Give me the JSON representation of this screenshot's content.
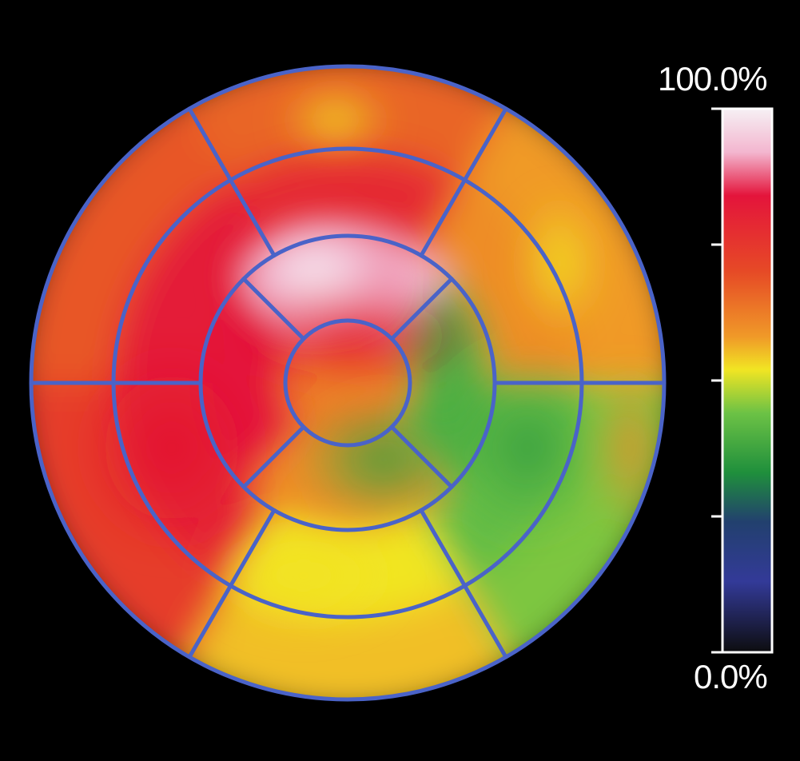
{
  "colors": {
    "background": "#000000",
    "segment_border": "#4a63c8",
    "label_text": "#ffffff",
    "scale_frame": "#ffffff"
  },
  "color_scale": {
    "max_label": "100.0%",
    "min_label": "0.0%",
    "stops": [
      {
        "at": 1.0,
        "color": "#f6f0f4"
      },
      {
        "at": 0.92,
        "color": "#f3b6cf"
      },
      {
        "at": 0.84,
        "color": "#e4143b"
      },
      {
        "at": 0.7,
        "color": "#e64a26"
      },
      {
        "at": 0.58,
        "color": "#f09a28"
      },
      {
        "at": 0.52,
        "color": "#f1e523"
      },
      {
        "at": 0.44,
        "color": "#6cc245"
      },
      {
        "at": 0.33,
        "color": "#1f8f3c"
      },
      {
        "at": 0.24,
        "color": "#22406e"
      },
      {
        "at": 0.13,
        "color": "#333a98"
      },
      {
        "at": 0.0,
        "color": "#0d0d0f"
      }
    ],
    "tick_values": [
      0,
      0.25,
      0.5,
      0.75,
      1
    ]
  },
  "bullseye": {
    "rings": [
      {
        "name": "basal",
        "segments": 6
      },
      {
        "name": "mid",
        "segments": 6
      },
      {
        "name": "apical",
        "segments": 4
      },
      {
        "name": "apex",
        "segments": 1
      }
    ],
    "basal": [
      {
        "segment": 1,
        "level": 0.66
      },
      {
        "segment": 2,
        "level": 0.68
      },
      {
        "segment": 3,
        "level": 0.73
      },
      {
        "segment": 4,
        "level": 0.55
      },
      {
        "segment": 5,
        "level": 0.45
      },
      {
        "segment": 6,
        "level": 0.58
      }
    ],
    "mid": [
      {
        "segment": 7,
        "level": 0.78
      },
      {
        "segment": 8,
        "level": 0.82
      },
      {
        "segment": 9,
        "level": 0.8
      },
      {
        "segment": 10,
        "level": 0.52
      },
      {
        "segment": 11,
        "level": 0.43
      },
      {
        "segment": 12,
        "level": 0.6
      }
    ],
    "apical": [
      {
        "segment": 13,
        "level": 0.92
      },
      {
        "segment": 14,
        "level": 0.84
      },
      {
        "segment": 15,
        "level": 0.6
      },
      {
        "segment": 16,
        "level": 0.4
      }
    ],
    "apex": [
      {
        "segment": 17,
        "level": 0.62
      }
    ]
  }
}
